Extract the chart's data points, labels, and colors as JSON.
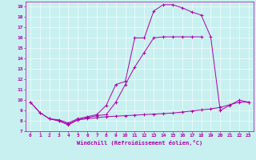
{
  "xlabel": "Windchill (Refroidissement éolien,°C)",
  "bg_color": "#c8f0f0",
  "line_color": "#aa00aa",
  "xlim": [
    -0.5,
    23.5
  ],
  "ylim": [
    7,
    19.5
  ],
  "xticks": [
    0,
    1,
    2,
    3,
    4,
    5,
    6,
    7,
    8,
    9,
    10,
    11,
    12,
    13,
    14,
    15,
    16,
    17,
    18,
    19,
    20,
    21,
    22,
    23
  ],
  "yticks": [
    7,
    8,
    9,
    10,
    11,
    12,
    13,
    14,
    15,
    16,
    17,
    18,
    19
  ],
  "line1_x": [
    0,
    1,
    2,
    3,
    4,
    5,
    6,
    7,
    8,
    9,
    10,
    11,
    12,
    13,
    14,
    15,
    16,
    17,
    18,
    19,
    20,
    21,
    22,
    23
  ],
  "line1_y": [
    9.8,
    8.8,
    8.2,
    8.1,
    7.8,
    8.2,
    8.4,
    8.6,
    9.5,
    11.5,
    11.8,
    16.0,
    16.0,
    18.6,
    19.2,
    19.2,
    18.9,
    18.5,
    18.2,
    16.1,
    9.0,
    9.5,
    10.0,
    9.8
  ],
  "line2_x": [
    0,
    1,
    2,
    3,
    4,
    5,
    6,
    7,
    8,
    9,
    10,
    11,
    12,
    13,
    14,
    15,
    16,
    17,
    18,
    19,
    20,
    21,
    22,
    23
  ],
  "line2_y": [
    9.8,
    8.8,
    8.2,
    8.0,
    7.6,
    8.1,
    8.2,
    8.3,
    8.4,
    8.45,
    8.5,
    8.55,
    8.6,
    8.65,
    8.7,
    8.75,
    8.85,
    8.95,
    9.05,
    9.15,
    9.3,
    9.55,
    9.8,
    9.8
  ],
  "line3_x": [
    2,
    3,
    4,
    5,
    6,
    7,
    8,
    9,
    10,
    11,
    12,
    13,
    14,
    15,
    16,
    17,
    18
  ],
  "line3_y": [
    8.2,
    8.0,
    7.7,
    8.1,
    8.3,
    8.5,
    8.6,
    9.8,
    11.5,
    13.2,
    14.6,
    16.0,
    16.1,
    16.1,
    16.1,
    16.1,
    16.1
  ]
}
